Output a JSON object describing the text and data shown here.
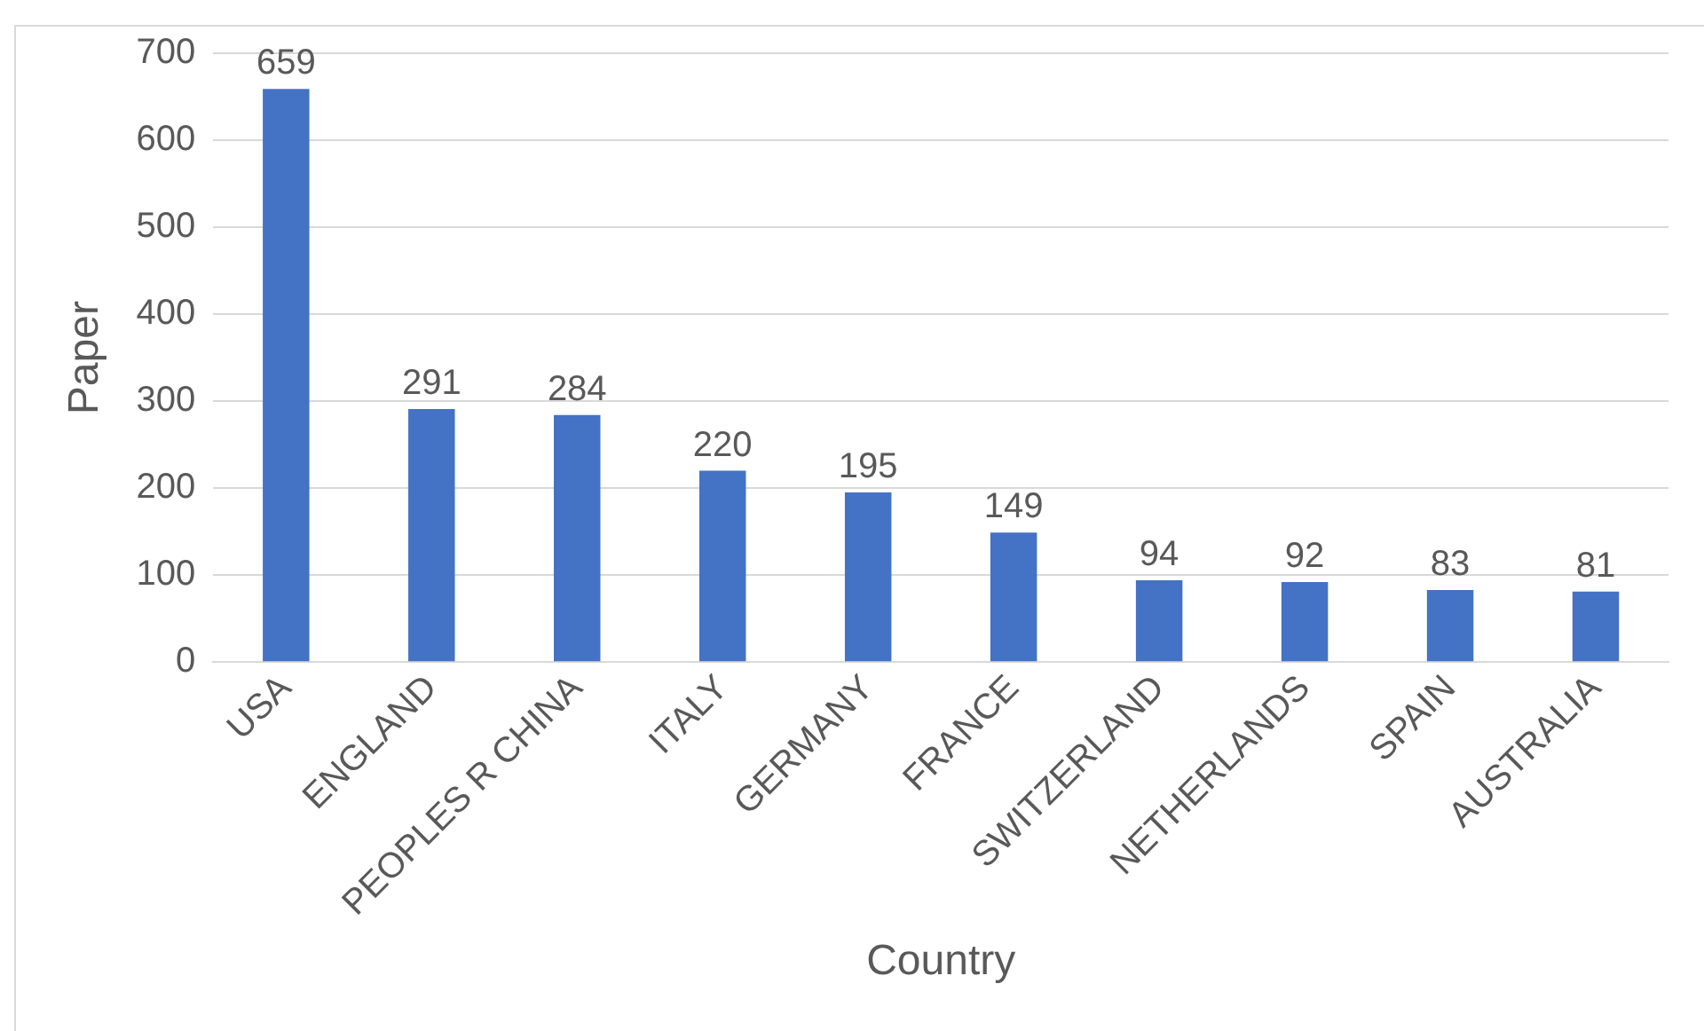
{
  "chart_data": {
    "type": "bar",
    "xlabel": "Country",
    "ylabel": "Paper",
    "categories": [
      "USA",
      "ENGLAND",
      "PEOPLES R CHINA",
      "ITALY",
      "GERMANY",
      "FRANCE",
      "SWITZERLAND",
      "NETHERLANDS",
      "SPAIN",
      "AUSTRALIA"
    ],
    "values": [
      659,
      291,
      284,
      220,
      195,
      149,
      94,
      92,
      83,
      81
    ],
    "color": "#4472c4",
    "ylim": [
      0,
      700
    ],
    "yticks": [
      0,
      100,
      200,
      300,
      400,
      500,
      600,
      700
    ],
    "grid": "y",
    "data_labels": true,
    "legend": false
  }
}
